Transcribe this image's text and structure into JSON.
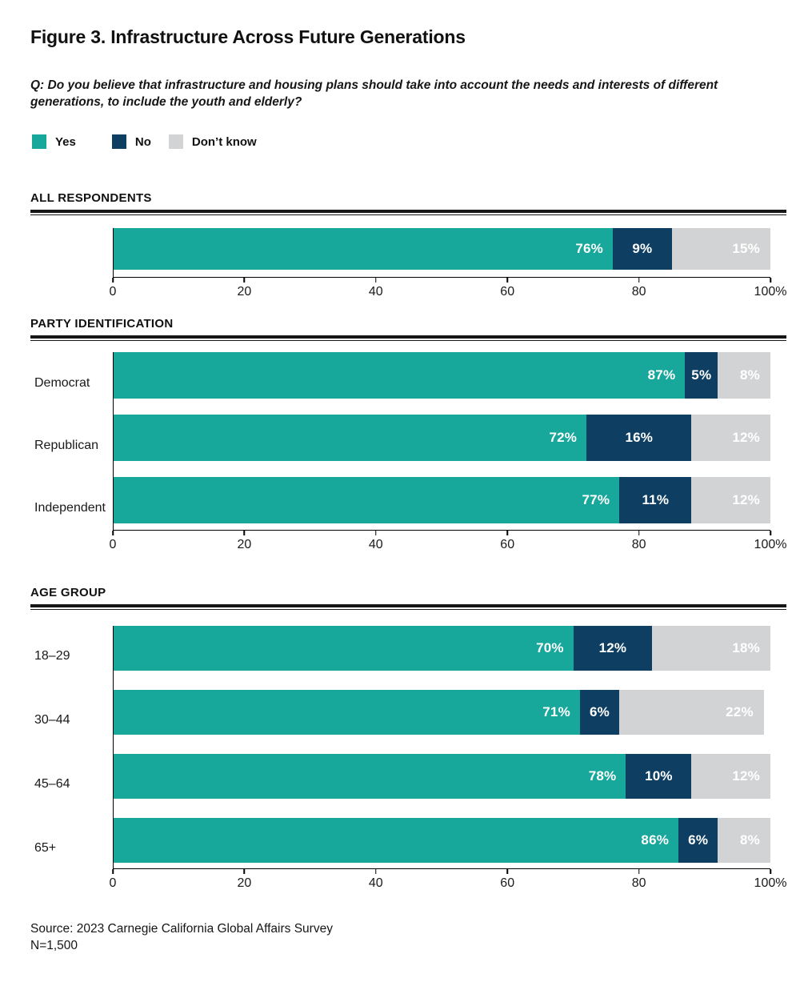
{
  "figure": {
    "title": "Figure 3. Infrastructure Across Future Generations",
    "question": "Q: Do you believe that infrastructure and housing plans should take into account the needs and interests of different generations, to include the youth and elderly?",
    "source": "Source: 2023 Carnegie California Global Affairs Survey",
    "sample_size": "N=1,500"
  },
  "legend": [
    {
      "label": "Yes",
      "color": "#17A79B"
    },
    {
      "label": "No",
      "color": "#0E3F63"
    },
    {
      "label": "Don’t know",
      "color": "#D2D3D4"
    }
  ],
  "colors": {
    "yes": "#17A79B",
    "no": "#0E3F63",
    "dont_know": "#D2D3D4",
    "text": "#1a1a1a",
    "rule": "#161616",
    "value_label": "#ffffff"
  },
  "chart_data": [
    {
      "type": "bar",
      "stacked": true,
      "orientation": "horizontal",
      "section": "ALL RESPONDENTS",
      "categories": [
        ""
      ],
      "series": [
        {
          "name": "Yes",
          "values": [
            76
          ]
        },
        {
          "name": "No",
          "values": [
            9
          ]
        },
        {
          "name": "Don’t know",
          "values": [
            15
          ]
        }
      ],
      "xlim": [
        0,
        100
      ],
      "axis_ticks": [
        "0",
        "20",
        "40",
        "60",
        "80",
        "100%"
      ],
      "grid": false,
      "legend_position": "top"
    },
    {
      "type": "bar",
      "stacked": true,
      "orientation": "horizontal",
      "section": "PARTY IDENTIFICATION",
      "categories": [
        "Democrat",
        "Republican",
        "Independent"
      ],
      "series": [
        {
          "name": "Yes",
          "values": [
            87,
            72,
            77
          ]
        },
        {
          "name": "No",
          "values": [
            5,
            16,
            11
          ]
        },
        {
          "name": "Don’t know",
          "values": [
            8,
            12,
            12
          ]
        }
      ],
      "xlim": [
        0,
        100
      ],
      "axis_ticks": [
        "0",
        "20",
        "40",
        "60",
        "80",
        "100%"
      ],
      "grid": false,
      "legend_position": "top"
    },
    {
      "type": "bar",
      "stacked": true,
      "orientation": "horizontal",
      "section": "AGE GROUP",
      "categories": [
        "18–29",
        "30–44",
        "45–64",
        "65+"
      ],
      "series": [
        {
          "name": "Yes",
          "values": [
            70,
            71,
            78,
            86
          ]
        },
        {
          "name": "No",
          "values": [
            12,
            6,
            10,
            6
          ]
        },
        {
          "name": "Don’t know",
          "values": [
            18,
            22,
            12,
            8
          ]
        }
      ],
      "xlim": [
        0,
        100
      ],
      "axis_ticks": [
        "0",
        "20",
        "40",
        "60",
        "80",
        "100%"
      ],
      "grid": false,
      "legend_position": "top"
    }
  ]
}
